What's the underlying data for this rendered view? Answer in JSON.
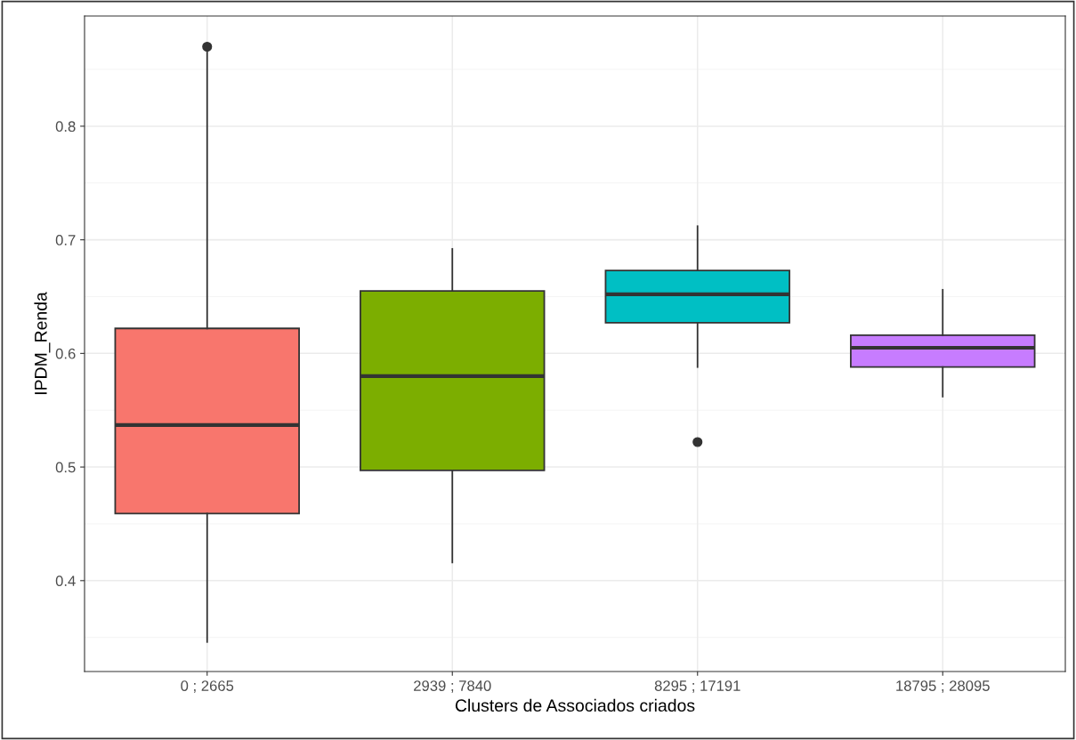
{
  "chart_data": {
    "type": "box",
    "xlabel": "Clusters de Associados criados",
    "ylabel": "IPDM_Renda",
    "categories": [
      "0 ; 2665",
      "2939 ; 7840",
      "8295 ; 17191",
      "18795 ; 28095"
    ],
    "colors": [
      "#f8766d",
      "#7cae00",
      "#00bfc4",
      "#c77cff"
    ],
    "boxes": [
      {
        "low": 0.346,
        "q1": 0.459,
        "median": 0.537,
        "q3": 0.622,
        "high": 0.868,
        "outliers": [
          0.87
        ]
      },
      {
        "low": 0.416,
        "q1": 0.497,
        "median": 0.58,
        "q3": 0.655,
        "high": 0.692
      },
      {
        "low": 0.588,
        "q1": 0.627,
        "median": 0.652,
        "q3": 0.673,
        "high": 0.712,
        "outliers": [
          0.522
        ]
      },
      {
        "low": 0.562,
        "q1": 0.588,
        "median": 0.605,
        "q3": 0.616,
        "high": 0.656
      }
    ],
    "ylim": [
      0.32,
      0.897
    ],
    "yticks": [
      {
        "value": 0.4,
        "label": "0.4"
      },
      {
        "value": 0.5,
        "label": "0.5"
      },
      {
        "value": 0.6,
        "label": "0.6"
      },
      {
        "value": 0.7,
        "label": "0.7"
      },
      {
        "value": 0.8,
        "label": "0.8"
      }
    ],
    "grid": true
  }
}
